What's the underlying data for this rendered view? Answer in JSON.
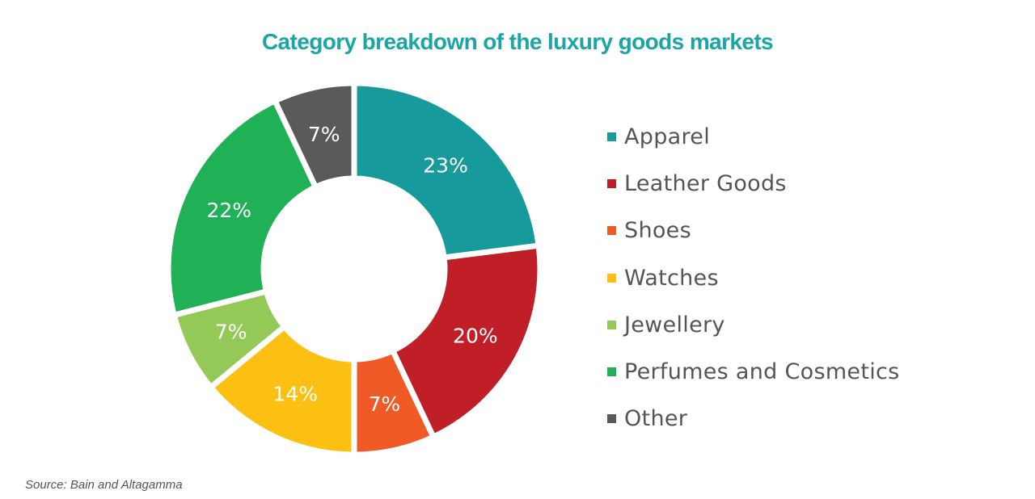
{
  "title": "Category breakdown of the luxury goods markets",
  "source": "Source: Bain and Altagamma",
  "legend": {
    "items": [
      {
        "label": "Apparel",
        "color": "#179a9c"
      },
      {
        "label": "Leather Goods",
        "color": "#c01f28"
      },
      {
        "label": "Shoes",
        "color": "#ef5a27"
      },
      {
        "label": "Watches",
        "color": "#fbc012"
      },
      {
        "label": "Jewellery",
        "color": "#94c957"
      },
      {
        "label": "Perfumes and Cosmetics",
        "color": "#20b055"
      },
      {
        "label": "Other",
        "color": "#5a5a5a"
      }
    ]
  },
  "chart_data": {
    "type": "pie",
    "subtype": "donut",
    "title": "Category breakdown of the luxury goods markets",
    "categories": [
      "Apparel",
      "Leather Goods",
      "Shoes",
      "Watches",
      "Jewellery",
      "Perfumes and Cosmetics",
      "Other"
    ],
    "values": [
      23,
      20,
      7,
      14,
      7,
      22,
      7
    ],
    "labels": [
      "23%",
      "20%",
      "7%",
      "14%",
      "7%",
      "22%",
      "7%"
    ],
    "colors": [
      "#179a9c",
      "#c01f28",
      "#ef5a27",
      "#fbc012",
      "#94c957",
      "#20b055",
      "#5a5a5a"
    ],
    "unit": "%",
    "start_angle": "12 o'clock, clockwise",
    "legend_position": "right",
    "annotation": "Source: Bain and Altagamma"
  }
}
